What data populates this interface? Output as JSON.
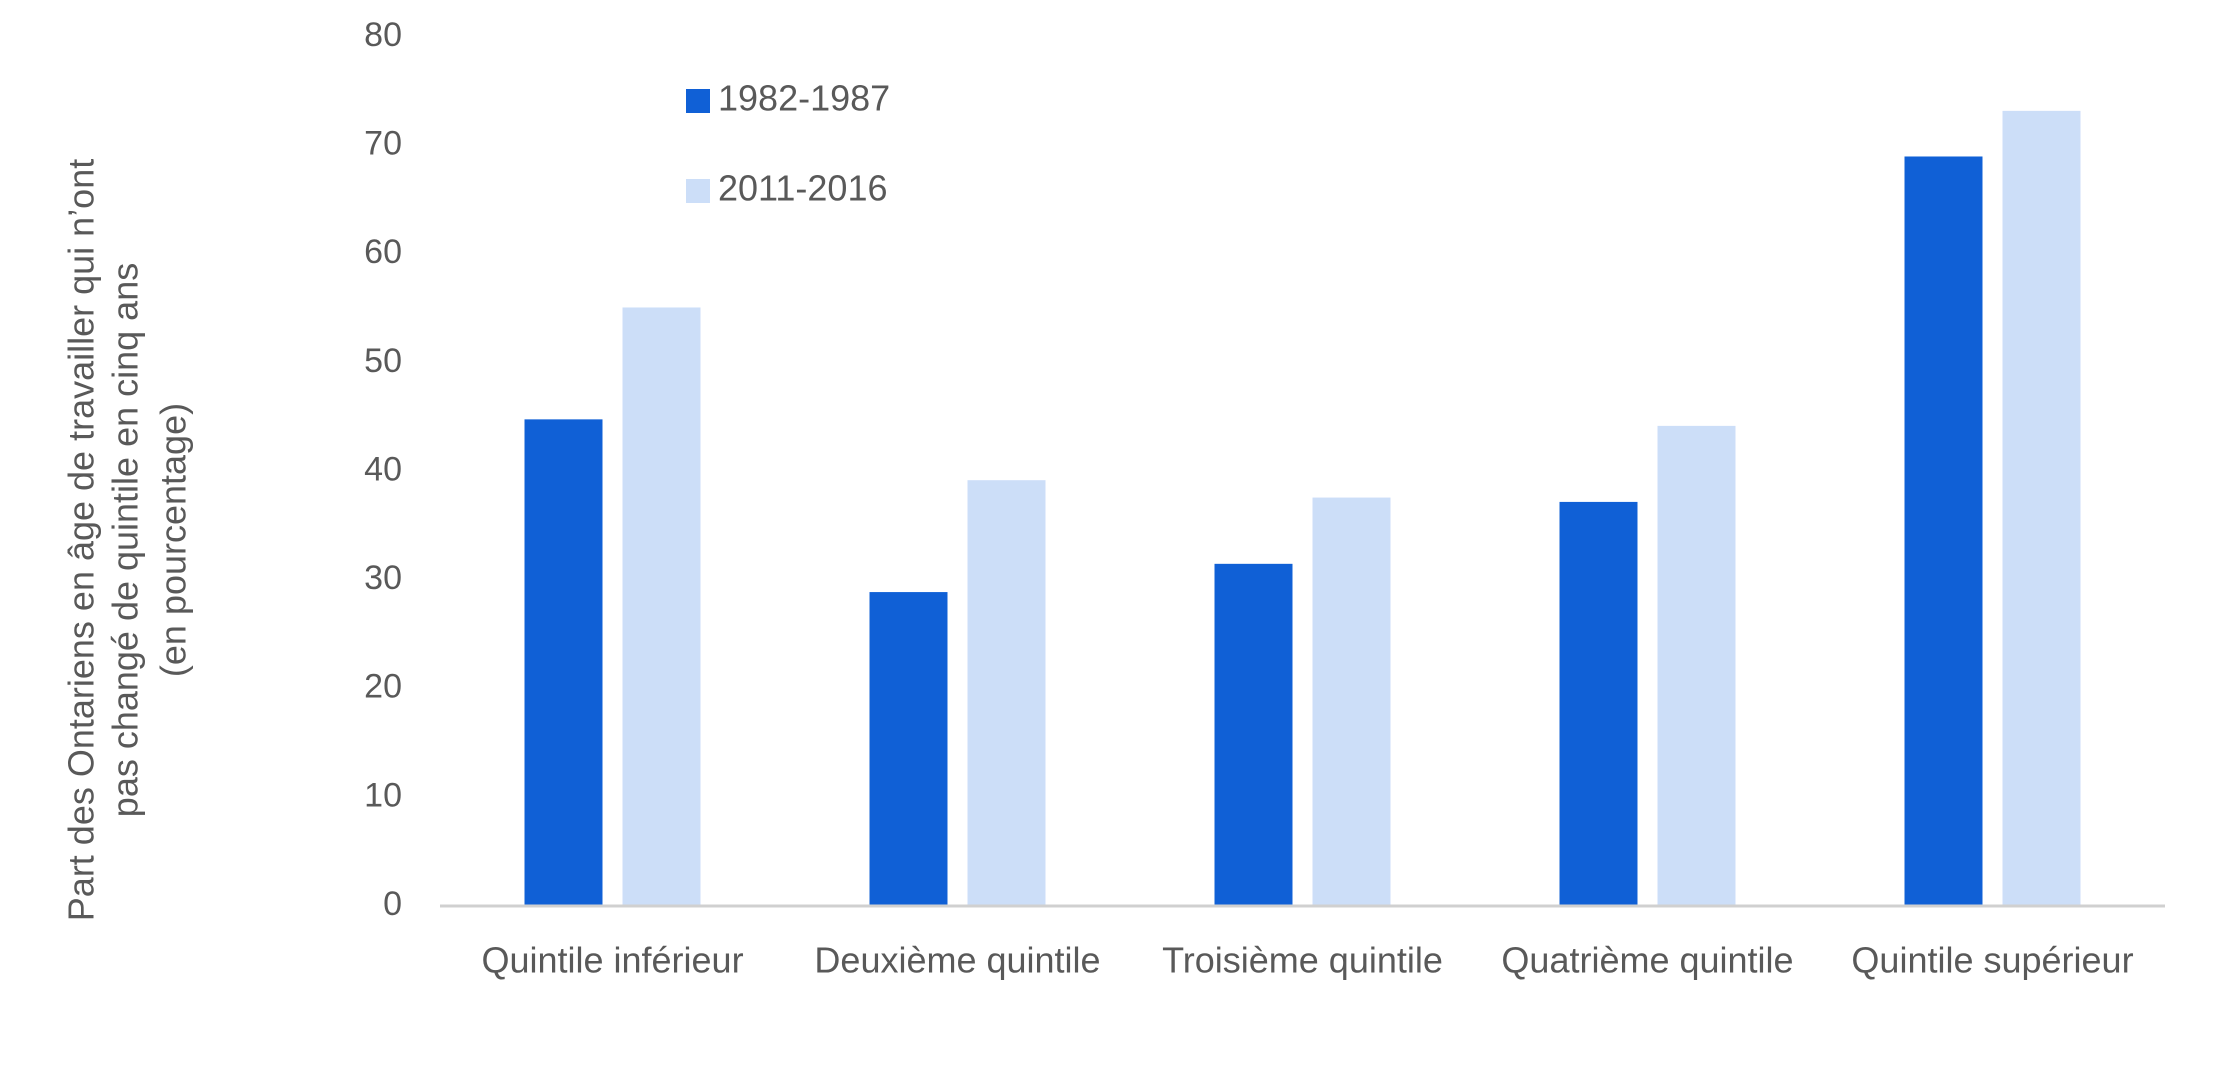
{
  "colors": {
    "series_1": "#1060D6",
    "series_2": "#CCDEF8",
    "axis": "#D0D0D0",
    "text": "#595959"
  },
  "chart_data": {
    "type": "bar",
    "title": "",
    "xlabel": "",
    "ylabel_lines": [
      "Part des Ontariens en âge de travailler qui n’ont",
      "pas changé de quintile en cinq ans",
      "(en pourcentage)"
    ],
    "categories": [
      "Quintile inférieur",
      "Deuxième quintile",
      "Troisième quintile",
      "Quatrième quintile",
      "Quintile supérieur"
    ],
    "series": [
      {
        "name": "1982-1987",
        "values": [
          44.8,
          28.9,
          31.5,
          37.2,
          69.0
        ]
      },
      {
        "name": "2011-2016",
        "values": [
          55.1,
          39.2,
          37.6,
          44.2,
          73.2
        ]
      }
    ],
    "ylim": [
      0,
      80
    ],
    "yticks": [
      0,
      10,
      20,
      30,
      40,
      50,
      60,
      70,
      80
    ],
    "grid": false,
    "legend_position": "top-left"
  }
}
